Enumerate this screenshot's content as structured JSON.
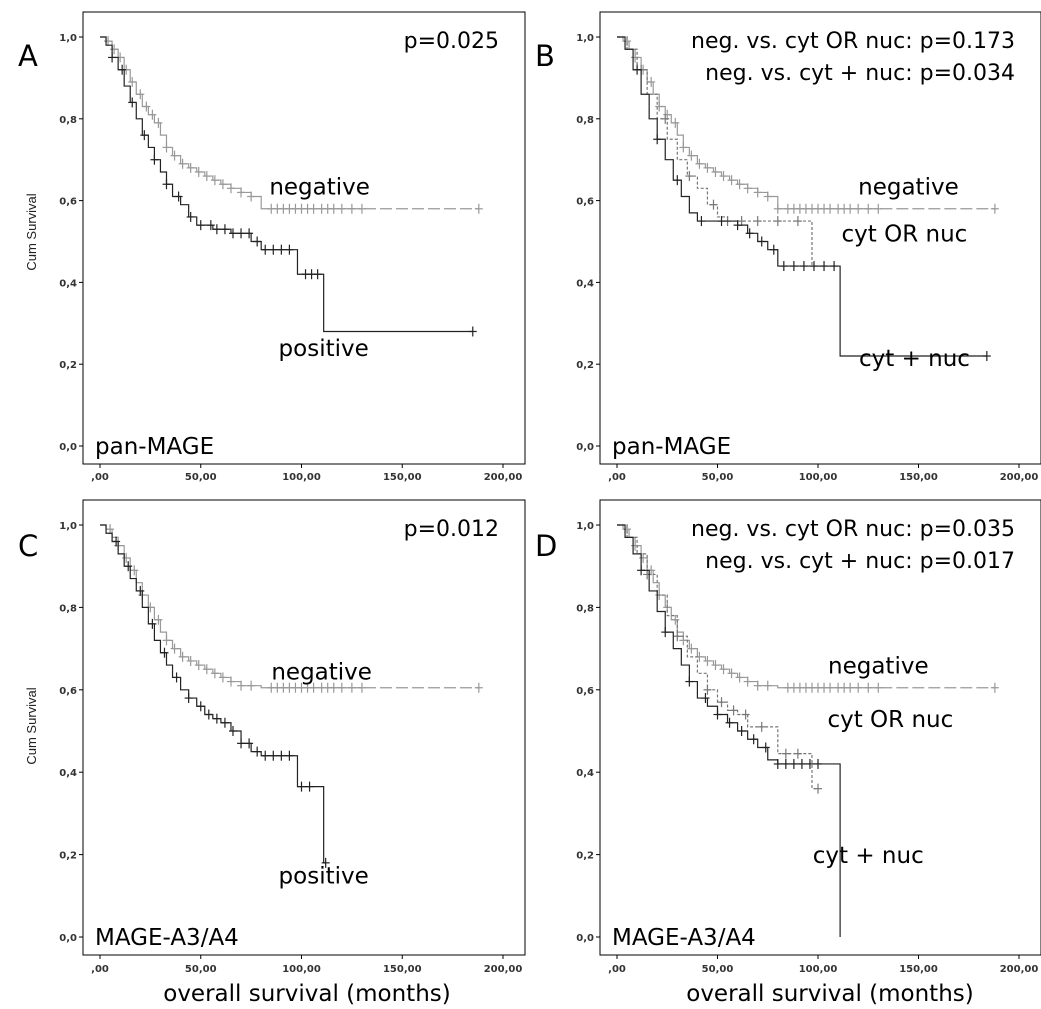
{
  "figure": {
    "xlabel": "overall survival (months)",
    "ylabel": "Cum Survival"
  },
  "chart_data": [
    {
      "type": "line",
      "panel": "A",
      "marker_label": "pan-MAGE",
      "pvalues": [
        "p=0.025"
      ],
      "xlabel": "",
      "ylabel": "Cum Survival",
      "xlim": [
        0,
        200
      ],
      "ylim": [
        0,
        1
      ],
      "xticks": [
        ",00",
        "50,00",
        "100,00",
        "150,00",
        "200,00"
      ],
      "yticks": [
        "0,0",
        "0,2",
        "0,4",
        "0,6",
        "0,8",
        "1,0"
      ],
      "series": [
        {
          "name": "negative",
          "color": "#999999",
          "dash": "dashed-tail",
          "x": [
            0,
            3,
            6,
            9,
            12,
            15,
            18,
            21,
            24,
            27,
            30,
            33,
            36,
            40,
            44,
            48,
            52,
            56,
            60,
            65,
            70,
            75,
            80,
            85,
            90,
            100,
            110,
            120,
            130,
            140,
            150,
            160,
            170,
            180,
            188
          ],
          "y": [
            1.0,
            0.99,
            0.97,
            0.95,
            0.92,
            0.89,
            0.86,
            0.83,
            0.81,
            0.79,
            0.76,
            0.73,
            0.71,
            0.69,
            0.68,
            0.67,
            0.66,
            0.65,
            0.64,
            0.63,
            0.62,
            0.61,
            0.58,
            0.58,
            0.58,
            0.58,
            0.58,
            0.58,
            0.58,
            0.58,
            0.58,
            0.58,
            0.58,
            0.58,
            0.58
          ],
          "censor_x": [
            4,
            7,
            10,
            13,
            16,
            20,
            23,
            26,
            29,
            33,
            37,
            41,
            45,
            49,
            53,
            57,
            61,
            65,
            70,
            75,
            85,
            88,
            91,
            94,
            97,
            100,
            103,
            106,
            110,
            113,
            116,
            120,
            125,
            130,
            188
          ]
        },
        {
          "name": "positive",
          "color": "#222222",
          "dash": "solid",
          "x": [
            0,
            3,
            6,
            9,
            12,
            15,
            18,
            21,
            24,
            27,
            30,
            33,
            36,
            40,
            44,
            48,
            52,
            56,
            60,
            65,
            70,
            75,
            80,
            90,
            98,
            110,
            111,
            185
          ],
          "y": [
            1.0,
            0.98,
            0.95,
            0.92,
            0.88,
            0.84,
            0.8,
            0.76,
            0.73,
            0.7,
            0.67,
            0.64,
            0.61,
            0.59,
            0.56,
            0.54,
            0.54,
            0.53,
            0.53,
            0.52,
            0.52,
            0.5,
            0.48,
            0.48,
            0.42,
            0.42,
            0.28,
            0.28
          ],
          "censor_x": [
            6,
            11,
            16,
            22,
            27,
            33,
            39,
            45,
            50,
            55,
            58,
            62,
            66,
            70,
            74,
            78,
            82,
            86,
            90,
            94,
            102,
            105,
            108,
            185
          ]
        }
      ],
      "labels": [
        {
          "text": "negative",
          "x": 109,
          "y": 0.615
        },
        {
          "text": "positive",
          "x": 111,
          "y": 0.22
        }
      ]
    },
    {
      "type": "line",
      "panel": "B",
      "marker_label": "pan-MAGE",
      "pvalues": [
        "neg. vs. cyt OR nuc: p=0.173",
        "neg. vs. cyt + nuc: p=0.034"
      ],
      "xlabel": "",
      "ylabel": "",
      "xlim": [
        0,
        200
      ],
      "ylim": [
        0,
        1
      ],
      "xticks": [
        ",00",
        "50,00",
        "100,00",
        "150,00",
        "200,00"
      ],
      "yticks": [
        "0,0",
        "0,2",
        "0,4",
        "0,6",
        "0,8",
        "1,0"
      ],
      "series": [
        {
          "name": "negative",
          "color": "#999999",
          "dash": "dashed-tail",
          "x": [
            0,
            3,
            6,
            9,
            12,
            15,
            18,
            21,
            24,
            27,
            30,
            33,
            36,
            40,
            44,
            48,
            52,
            56,
            60,
            65,
            70,
            75,
            80,
            85,
            90,
            100,
            110,
            120,
            130,
            140,
            150,
            160,
            170,
            180,
            188
          ],
          "y": [
            1.0,
            0.99,
            0.97,
            0.95,
            0.92,
            0.89,
            0.86,
            0.83,
            0.81,
            0.79,
            0.76,
            0.73,
            0.71,
            0.69,
            0.68,
            0.67,
            0.66,
            0.65,
            0.64,
            0.63,
            0.62,
            0.61,
            0.58,
            0.58,
            0.58,
            0.58,
            0.58,
            0.58,
            0.58,
            0.58,
            0.58,
            0.58,
            0.58,
            0.58,
            0.58
          ],
          "censor_x": [
            5,
            9,
            13,
            17,
            21,
            25,
            29,
            33,
            37,
            41,
            45,
            49,
            53,
            57,
            61,
            65,
            70,
            75,
            80,
            85,
            88,
            91,
            94,
            97,
            100,
            103,
            106,
            110,
            113,
            116,
            120,
            125,
            130,
            188
          ]
        },
        {
          "name": "cyt OR nuc",
          "color": "#777777",
          "dash": "dotted",
          "x": [
            0,
            5,
            10,
            15,
            20,
            25,
            30,
            35,
            40,
            45,
            50,
            55,
            60,
            70,
            80,
            96,
            97,
            100,
            110
          ],
          "y": [
            1.0,
            0.97,
            0.92,
            0.86,
            0.8,
            0.75,
            0.7,
            0.66,
            0.63,
            0.59,
            0.56,
            0.55,
            0.55,
            0.55,
            0.55,
            0.55,
            0.44,
            0.44,
            0.44
          ],
          "censor_x": [
            12,
            24,
            36,
            48,
            55,
            62,
            70,
            80,
            90
          ]
        },
        {
          "name": "cyt + nuc",
          "color": "#222222",
          "dash": "solid",
          "x": [
            0,
            4,
            8,
            12,
            16,
            20,
            24,
            28,
            32,
            36,
            40,
            45,
            50,
            55,
            60,
            65,
            70,
            75,
            80,
            85,
            90,
            100,
            110,
            111,
            184
          ],
          "y": [
            1.0,
            0.97,
            0.92,
            0.86,
            0.8,
            0.75,
            0.7,
            0.65,
            0.61,
            0.57,
            0.55,
            0.55,
            0.55,
            0.55,
            0.54,
            0.52,
            0.5,
            0.48,
            0.44,
            0.44,
            0.44,
            0.44,
            0.44,
            0.22,
            0.22
          ],
          "censor_x": [
            10,
            20,
            30,
            42,
            52,
            60,
            66,
            72,
            78,
            83,
            88,
            93,
            98,
            103,
            108,
            184
          ]
        }
      ],
      "labels": [
        {
          "text": "negative",
          "x": 145,
          "y": 0.615
        },
        {
          "text": "cyt OR nuc",
          "x": 143,
          "y": 0.5
        },
        {
          "text": "cyt + nuc",
          "x": 148,
          "y": 0.195
        }
      ]
    },
    {
      "type": "line",
      "panel": "C",
      "marker_label": "MAGE-A3/A4",
      "pvalues": [
        "p=0.012"
      ],
      "xlabel": "overall survival (months)",
      "ylabel": "Cum Survival",
      "xlim": [
        0,
        200
      ],
      "ylim": [
        0,
        1
      ],
      "xticks": [
        ",00",
        "50,00",
        "100,00",
        "150,00",
        "200,00"
      ],
      "yticks": [
        "0,0",
        "0,2",
        "0,4",
        "0,6",
        "0,8",
        "1,0"
      ],
      "series": [
        {
          "name": "negative",
          "color": "#999999",
          "dash": "dashed-tail",
          "x": [
            0,
            3,
            6,
            9,
            12,
            15,
            18,
            21,
            24,
            27,
            30,
            33,
            36,
            40,
            44,
            48,
            52,
            56,
            60,
            65,
            70,
            75,
            80,
            90,
            100,
            110,
            120,
            130,
            140,
            150,
            160,
            170,
            180,
            188
          ],
          "y": [
            1.0,
            0.99,
            0.97,
            0.95,
            0.92,
            0.89,
            0.86,
            0.83,
            0.8,
            0.77,
            0.74,
            0.72,
            0.7,
            0.68,
            0.67,
            0.66,
            0.65,
            0.64,
            0.63,
            0.62,
            0.61,
            0.61,
            0.605,
            0.605,
            0.605,
            0.605,
            0.605,
            0.605,
            0.605,
            0.605,
            0.605,
            0.605,
            0.605,
            0.605
          ],
          "censor_x": [
            5,
            9,
            13,
            17,
            21,
            25,
            29,
            33,
            37,
            41,
            45,
            49,
            53,
            57,
            61,
            65,
            70,
            75,
            85,
            88,
            91,
            94,
            97,
            100,
            103,
            106,
            110,
            113,
            116,
            120,
            125,
            130,
            188
          ]
        },
        {
          "name": "positive",
          "color": "#222222",
          "dash": "solid",
          "x": [
            0,
            3,
            6,
            9,
            12,
            15,
            18,
            21,
            24,
            27,
            30,
            33,
            36,
            40,
            44,
            48,
            52,
            56,
            60,
            65,
            70,
            75,
            80,
            90,
            97,
            98,
            110,
            111,
            112
          ],
          "y": [
            1.0,
            0.98,
            0.96,
            0.93,
            0.9,
            0.87,
            0.84,
            0.8,
            0.76,
            0.72,
            0.69,
            0.66,
            0.63,
            0.6,
            0.58,
            0.56,
            0.54,
            0.53,
            0.52,
            0.5,
            0.47,
            0.45,
            0.44,
            0.44,
            0.44,
            0.365,
            0.365,
            0.18,
            0.18
          ],
          "censor_x": [
            8,
            14,
            20,
            26,
            32,
            38,
            44,
            50,
            54,
            58,
            62,
            66,
            70,
            74,
            78,
            82,
            86,
            90,
            94,
            100,
            104,
            112
          ]
        }
      ],
      "labels": [
        {
          "text": "negative",
          "x": 110,
          "y": 0.625
        },
        {
          "text": "positive",
          "x": 111,
          "y": 0.13
        }
      ]
    },
    {
      "type": "line",
      "panel": "D",
      "marker_label": "MAGE-A3/A4",
      "pvalues": [
        "neg. vs. cyt OR nuc: p=0.035",
        "neg. vs. cyt + nuc: p=0.017"
      ],
      "xlabel": "overall survival (months)",
      "ylabel": "",
      "xlim": [
        0,
        200
      ],
      "ylim": [
        0,
        1
      ],
      "xticks": [
        ",00",
        "50,00",
        "100,00",
        "150,00",
        "200,00"
      ],
      "yticks": [
        "0,0",
        "0,2",
        "0,4",
        "0,6",
        "0,8",
        "1,0"
      ],
      "series": [
        {
          "name": "negative",
          "color": "#999999",
          "dash": "dashed-tail",
          "x": [
            0,
            3,
            6,
            9,
            12,
            15,
            18,
            21,
            24,
            27,
            30,
            33,
            36,
            40,
            44,
            48,
            52,
            56,
            60,
            65,
            70,
            75,
            80,
            90,
            100,
            110,
            120,
            130,
            140,
            150,
            160,
            170,
            180,
            188
          ],
          "y": [
            1.0,
            0.99,
            0.97,
            0.95,
            0.92,
            0.89,
            0.86,
            0.83,
            0.8,
            0.77,
            0.74,
            0.72,
            0.7,
            0.68,
            0.67,
            0.66,
            0.65,
            0.64,
            0.63,
            0.62,
            0.61,
            0.61,
            0.605,
            0.605,
            0.605,
            0.605,
            0.605,
            0.605,
            0.605,
            0.605,
            0.605,
            0.605,
            0.605,
            0.605
          ],
          "censor_x": [
            5,
            9,
            13,
            17,
            21,
            25,
            29,
            33,
            37,
            41,
            45,
            49,
            53,
            57,
            61,
            65,
            70,
            75,
            85,
            88,
            91,
            94,
            97,
            100,
            103,
            106,
            110,
            113,
            116,
            120,
            125,
            130,
            188
          ]
        },
        {
          "name": "cyt OR nuc",
          "color": "#777777",
          "dash": "dotted",
          "x": [
            0,
            5,
            10,
            15,
            20,
            25,
            30,
            35,
            40,
            45,
            50,
            55,
            60,
            65,
            70,
            80,
            96,
            97,
            100
          ],
          "y": [
            1.0,
            0.97,
            0.93,
            0.88,
            0.83,
            0.78,
            0.73,
            0.68,
            0.64,
            0.6,
            0.57,
            0.55,
            0.54,
            0.51,
            0.51,
            0.445,
            0.445,
            0.36,
            0.36
          ],
          "censor_x": [
            15,
            30,
            45,
            52,
            58,
            64,
            72,
            84,
            90,
            100
          ]
        },
        {
          "name": "cyt + nuc",
          "color": "#222222",
          "dash": "solid",
          "x": [
            0,
            4,
            8,
            12,
            16,
            20,
            24,
            28,
            32,
            36,
            40,
            45,
            50,
            55,
            60,
            65,
            70,
            75,
            80,
            90,
            100,
            110,
            111
          ],
          "y": [
            1.0,
            0.97,
            0.93,
            0.89,
            0.84,
            0.79,
            0.74,
            0.7,
            0.66,
            0.62,
            0.58,
            0.56,
            0.54,
            0.52,
            0.5,
            0.48,
            0.46,
            0.43,
            0.42,
            0.42,
            0.42,
            0.42,
            0.0
          ],
          "censor_x": [
            12,
            24,
            36,
            44,
            50,
            56,
            62,
            68,
            74,
            80,
            84,
            88,
            92,
            96,
            100
          ]
        }
      ],
      "labels": [
        {
          "text": "negative",
          "x": 130,
          "y": 0.64
        },
        {
          "text": "cyt OR nuc",
          "x": 136,
          "y": 0.51
        },
        {
          "text": "cyt + nuc",
          "x": 125,
          "y": 0.18
        }
      ]
    }
  ]
}
